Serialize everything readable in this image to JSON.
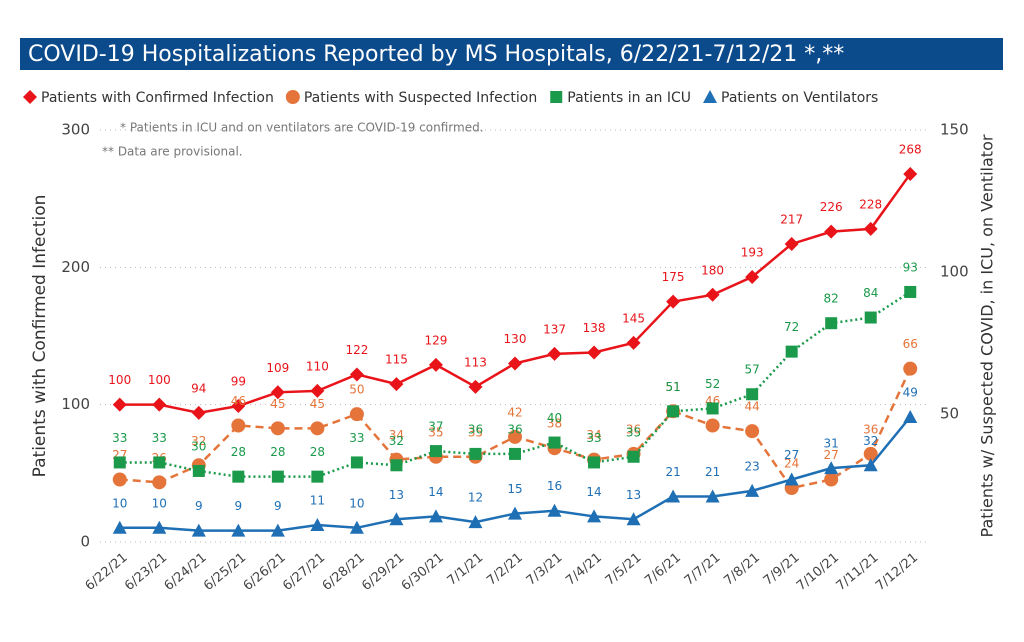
{
  "chart_data": {
    "type": "line",
    "title": "COVID-19 Hospitalizations Reported by MS Hospitals, 6/22/21-7/12/21 *,**",
    "notes": [
      "* Patients in ICU and on ventilators are COVID-19 confirmed.",
      "** Data are provisional."
    ],
    "ylabel": "Patients with Confirmed Infection",
    "y2label": "Patients w/ Suspected COVID, in ICU, on Ventilator",
    "categories": [
      "6/22/21",
      "6/23/21",
      "6/24/21",
      "6/25/21",
      "6/26/21",
      "6/27/21",
      "6/28/21",
      "6/29/21",
      "6/30/21",
      "7/1/21",
      "7/2/21",
      "7/3/21",
      "7/4/21",
      "7/5/21",
      "7/6/21",
      "7/7/21",
      "7/8/21",
      "7/9/21",
      "7/10/21",
      "7/11/21",
      "7/12/21"
    ],
    "ylim": [
      0,
      300
    ],
    "yticks": [
      0,
      100,
      200,
      300
    ],
    "y2lim": [
      5,
      150
    ],
    "y2ticks": [
      50,
      100,
      150
    ],
    "grid": true,
    "series": [
      {
        "name": "Patients with Confirmed Infection",
        "color": "#e8141a",
        "marker": "diamond",
        "dash": "solid",
        "axis": "y",
        "values": [
          100,
          100,
          94,
          99,
          109,
          110,
          122,
          115,
          129,
          113,
          130,
          137,
          138,
          145,
          175,
          180,
          193,
          217,
          226,
          228,
          268
        ]
      },
      {
        "name": "Patients with Suspected Infection",
        "color": "#e5743a",
        "marker": "circle",
        "dash": "dashed",
        "axis": "y2",
        "values": [
          27,
          26,
          32,
          46,
          45,
          45,
          50,
          34,
          35,
          35,
          42,
          38,
          34,
          36,
          51,
          46,
          44,
          24,
          27,
          36,
          66
        ]
      },
      {
        "name": "Patients in an ICU",
        "color": "#1a9a4a",
        "marker": "square",
        "dash": "dotted",
        "axis": "y2",
        "values": [
          33,
          33,
          30,
          28,
          28,
          28,
          33,
          32,
          37,
          36,
          36,
          40,
          33,
          35,
          51,
          52,
          57,
          72,
          82,
          84,
          93
        ]
      },
      {
        "name": "Patients on Ventilators",
        "color": "#1f6fb5",
        "marker": "triangle",
        "dash": "solid",
        "axis": "y2",
        "values": [
          10,
          10,
          9,
          9,
          9,
          11,
          10,
          13,
          14,
          12,
          15,
          16,
          14,
          13,
          21,
          21,
          23,
          27,
          31,
          32,
          49
        ]
      }
    ]
  }
}
